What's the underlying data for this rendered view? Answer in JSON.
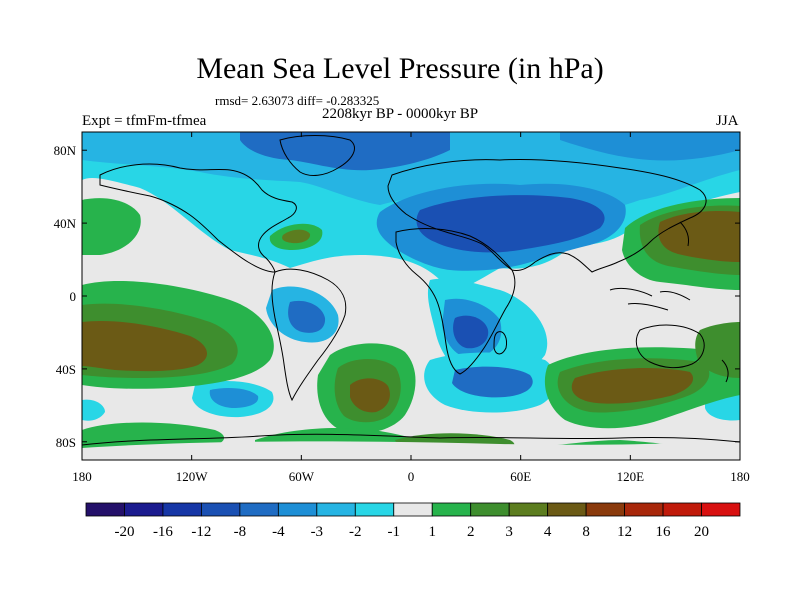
{
  "figure": {
    "title": "Mean Sea Level Pressure (in hPa)",
    "stats": "rmsd= 2.63073 diff= -0.283325",
    "period": "2208kyr BP - 0000kyr BP",
    "experiment": "Expt = tfmFm-tfmea",
    "season": "JJA"
  },
  "map": {
    "lat_ticks": [
      "80N",
      "40N",
      "0",
      "40S",
      "80S"
    ],
    "lat_values": [
      80,
      40,
      0,
      -40,
      -80
    ],
    "lon_ticks": [
      "180",
      "120W",
      "60W",
      "0",
      "60E",
      "120E",
      "180"
    ],
    "lon_values": [
      -180,
      -120,
      -60,
      0,
      60,
      120,
      180
    ]
  },
  "colorbar": {
    "labels": [
      "-20",
      "-16",
      "-12",
      "-8",
      "-4",
      "-3",
      "-2",
      "-1",
      "1",
      "2",
      "3",
      "4",
      "8",
      "12",
      "16",
      "20"
    ],
    "colors": [
      "#24106a",
      "#1b1b8f",
      "#1636a6",
      "#1a50b3",
      "#1f6cc3",
      "#1e8fd6",
      "#26b4e3",
      "#28d6e6",
      "#e8e8e8",
      "#27b34c",
      "#3e8e2e",
      "#5c7d1f",
      "#6b5a15",
      "#8a3a0c",
      "#a8270a",
      "#c01a0a",
      "#d81010"
    ]
  },
  "palette": {
    "neutral": "#e8e8e8",
    "neg1": "#28d6e6",
    "neg2": "#26b4e3",
    "neg3": "#1e8fd6",
    "neg4": "#1f6cc3",
    "neg8": "#1a50b3",
    "neg12": "#1636a6",
    "pos1": "#27b34c",
    "pos2": "#3e8e2e",
    "pos3": "#5c7d1f",
    "pos4": "#6b5a15"
  }
}
